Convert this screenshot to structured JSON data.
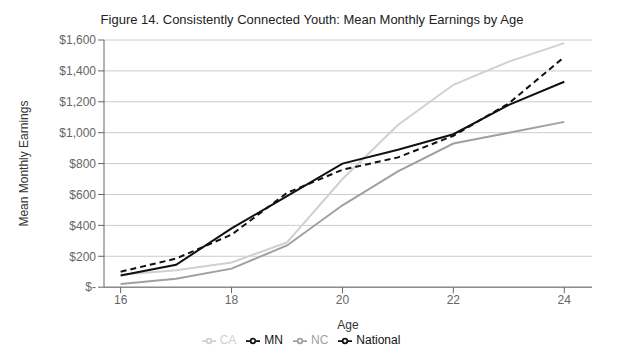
{
  "chart_data": {
    "type": "line",
    "title": "Figure 14. Consistently Connected Youth: Mean Monthly Earnings by Age",
    "xlabel": "Age",
    "ylabel": "Mean Monthly Earnings",
    "x": [
      16,
      17,
      18,
      19,
      20,
      21,
      22,
      23,
      24
    ],
    "series": [
      {
        "name": "CA",
        "color": "#d0d0d0",
        "line_style": "solid",
        "values": [
          80,
          110,
          160,
          290,
          700,
          1050,
          1310,
          1460,
          1580
        ]
      },
      {
        "name": "NC",
        "color": "#a0a0a0",
        "line_style": "solid",
        "values": [
          20,
          55,
          120,
          270,
          530,
          750,
          930,
          1000,
          1070
        ]
      },
      {
        "name": "MN",
        "color": "#111111",
        "line_style": "solid",
        "values": [
          75,
          145,
          380,
          590,
          800,
          890,
          990,
          1180,
          1330
        ]
      },
      {
        "name": "National",
        "color": "#111111",
        "line_style": "dashed",
        "values": [
          100,
          185,
          340,
          610,
          760,
          840,
          980,
          1190,
          1490
        ]
      }
    ],
    "xlim": [
      15.7,
      24.5
    ],
    "xticks": [
      16,
      18,
      20,
      22,
      24
    ],
    "ylim": [
      0,
      1600
    ],
    "yticks": [
      {
        "value": 0,
        "label": "$-"
      },
      {
        "value": 200,
        "label": "$200"
      },
      {
        "value": 400,
        "label": "$400"
      },
      {
        "value": 600,
        "label": "$600"
      },
      {
        "value": 800,
        "label": "$800"
      },
      {
        "value": 1000,
        "label": "$1,000"
      },
      {
        "value": 1200,
        "label": "$1,200"
      },
      {
        "value": 1400,
        "label": "$1,400"
      },
      {
        "value": 1600,
        "label": "$1,600"
      }
    ],
    "grid": "y",
    "legend": "bottom"
  }
}
